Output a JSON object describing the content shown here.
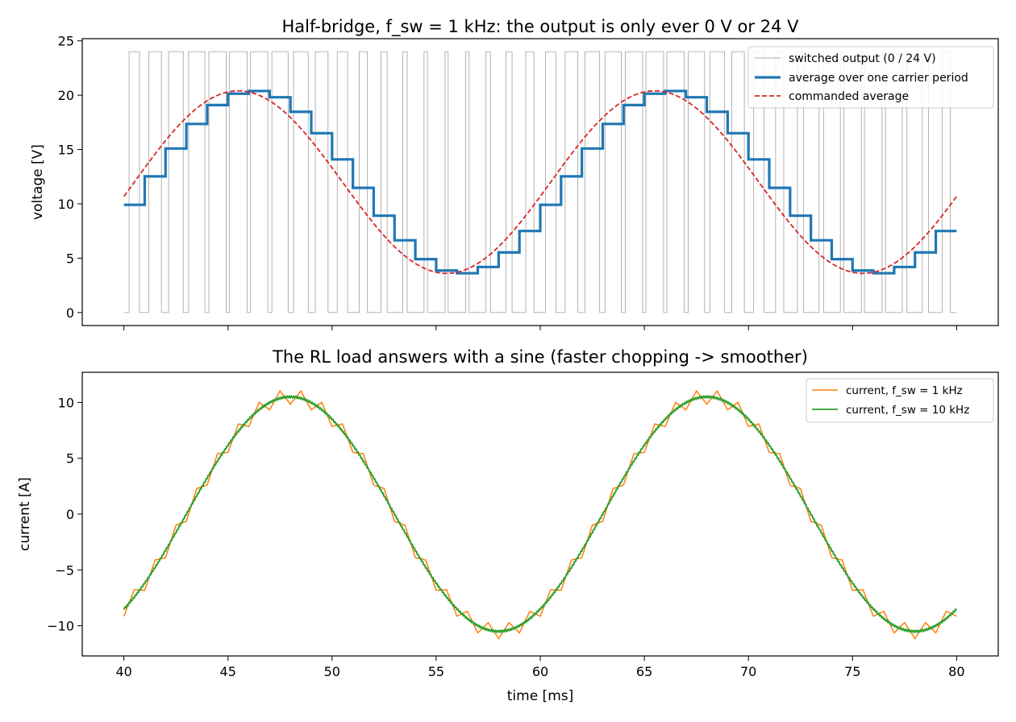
{
  "chart_data": [
    {
      "type": "line",
      "title": "Half-bridge, f_sw = 1 kHz: the output is only ever 0 V or 24 V",
      "xlabel": "",
      "ylabel": "voltage [V]",
      "xlim": [
        38,
        82
      ],
      "ylim": [
        -1.2,
        25.2
      ],
      "xticks": [
        40,
        45,
        50,
        55,
        60,
        65,
        70,
        75,
        80
      ],
      "xtick_labels_shown": false,
      "yticks": [
        "0",
        "5",
        "10",
        "15",
        "20",
        "25"
      ],
      "legend_position": "top-right",
      "model": {
        "period_ms": 20,
        "offset_V": 12,
        "amplitude_V": 8.4,
        "sample_time_ms": 40.0,
        "switching_period_ms": 1,
        "x_start_ms": 40,
        "x_end_ms": 80
      },
      "series": [
        {
          "name": "switched output (0 / 24 V)",
          "kind": "switched",
          "color": "#aaaaaa",
          "levels": [
            0,
            24
          ]
        },
        {
          "name": "average over one carrier period",
          "kind": "stepped-average",
          "color": "#1f77b4"
        },
        {
          "name": "commanded average",
          "kind": "sine",
          "color": "#d62728",
          "dashed": true
        }
      ]
    },
    {
      "type": "line",
      "title": "The RL load answers with a sine (faster chopping -> smoother)",
      "xlabel": "time [ms]",
      "ylabel": "current [A]",
      "xlim": [
        38,
        82
      ],
      "ylim": [
        -12.7,
        12.7
      ],
      "xticks": [
        "40",
        "45",
        "50",
        "55",
        "60",
        "65",
        "70",
        "75",
        "80"
      ],
      "yticks": [
        "−10",
        "−5",
        "0",
        "5",
        "10"
      ],
      "legend_position": "top-right",
      "model": {
        "period_ms": 20,
        "amplitude_A": 10.5,
        "peak_time_ms": 48,
        "x_start_ms": 40,
        "x_end_ms": 80
      },
      "series": [
        {
          "name": "current, f_sw = 1 kHz",
          "color": "#ff7f0e",
          "switching_period_ms": 1,
          "ripple_A": 1.3
        },
        {
          "name": "current, f_sw = 10 kHz",
          "color": "#2ca02c",
          "switching_period_ms": 0.1,
          "ripple_A": 0.13
        }
      ]
    }
  ]
}
